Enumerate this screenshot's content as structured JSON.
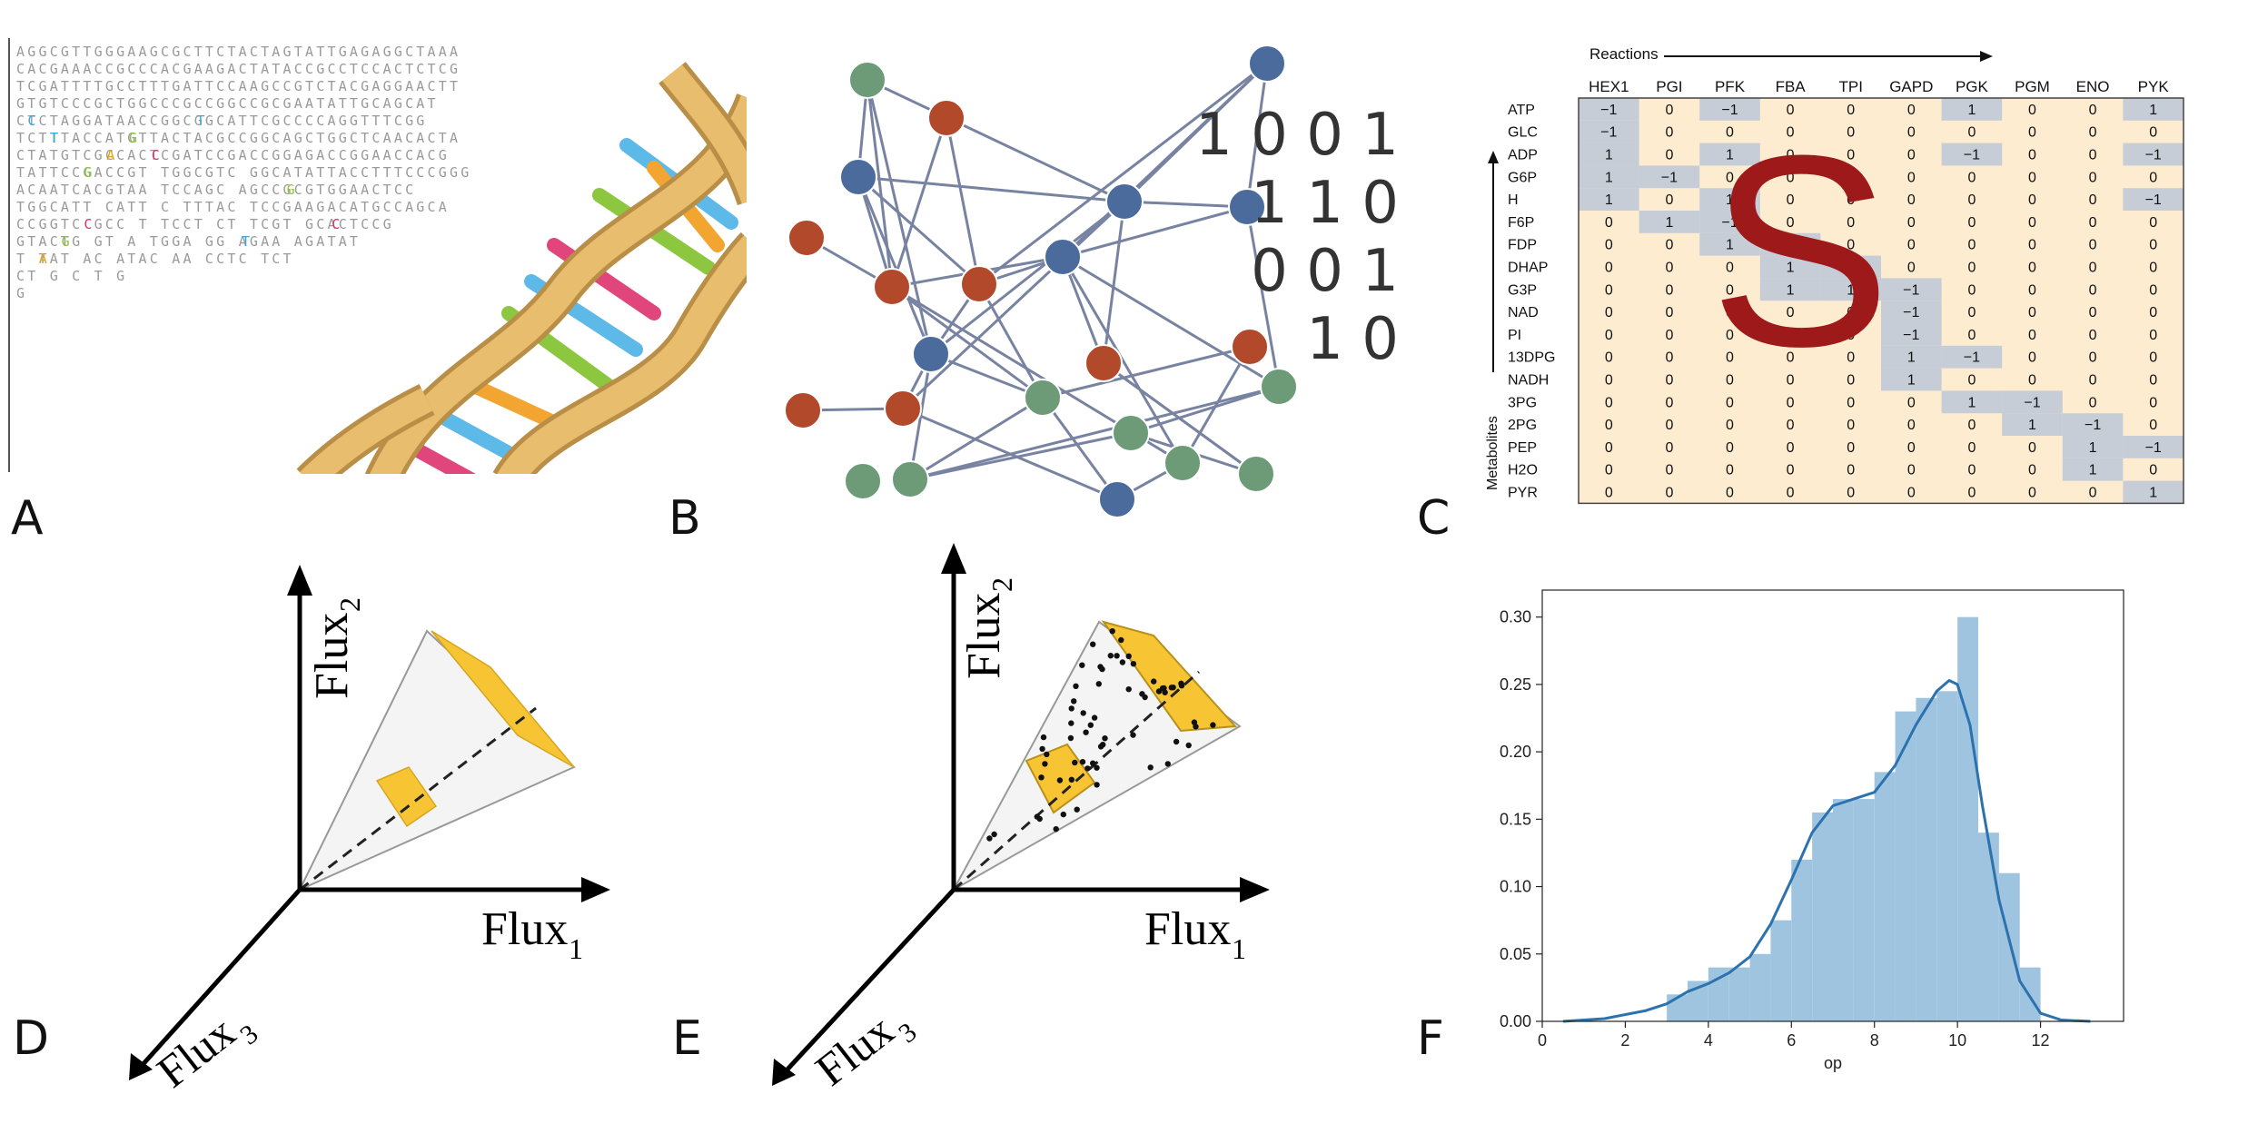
{
  "panels": {
    "A": {
      "letter": "A",
      "sequence_lines": [
        "AGGCGTTGGGAAGCGCTTCTACTAGTATTGAGAGGCTAAA",
        "CACGAAACCGCCCACGAAGACTATACCGCCTCCACTCTCG",
        "TCGATTTTGCCTTTGATTCCAAGCCGTCTACGAGGAACTT",
        "GTGTCCCGCTGGCCCGCCGGCCGCGAATATTGCAGCAT",
        "CTCTAGGATAACCGGCGGCATTCGCCCCAGGTTTCGG",
        "TCTTTACCATGTTACTACGCCGGCAGCTGGCTCAACACTA",
        "CTATGTCGCCACTCGATCCGACCGGAGACCGGAACCACG",
        "TATTCCGACCGT TGGCGTC GGCATATTACCTTTCCCGGG",
        "ACAATCACGTAA TCCAGC AGCCGCGTGGAACTCC",
        "TGGCATT CATT C TTTAC TCCGAAGACATGCCAGCA",
        "CCGGTC GCC T TCCT CT TCGT GCACTCCG",
        "GTACTG GT A TGGA GG AGAA AGATAT",
        "T TAT AC ATAC AA CCTC TCT",
        "CT G C T G",
        "G"
      ]
    },
    "B": {
      "letter": "B",
      "binary_rows": [
        "1 0 0 1",
        "1 1 0",
        "0 0 1",
        "1 0"
      ]
    },
    "C": {
      "letter": "C",
      "reactions_label": "Reactions",
      "metabolites_label": "Metabolites",
      "big_letter": "S",
      "columns": [
        "HEX1",
        "PGI",
        "PFK",
        "FBA",
        "TPI",
        "GAPD",
        "PGK",
        "PGM",
        "ENO",
        "PYK"
      ],
      "rows": [
        {
          "name": "ATP",
          "cells": [
            "−1",
            "0",
            "−1",
            "0",
            "0",
            "0",
            "1",
            "0",
            "0",
            "1"
          ]
        },
        {
          "name": "GLC",
          "cells": [
            "−1",
            "0",
            "0",
            "0",
            "0",
            "0",
            "0",
            "0",
            "0",
            "0"
          ]
        },
        {
          "name": "ADP",
          "cells": [
            "1",
            "0",
            "1",
            "0",
            "0",
            "0",
            "−1",
            "0",
            "0",
            "−1"
          ]
        },
        {
          "name": "G6P",
          "cells": [
            "1",
            "−1",
            "0",
            "0",
            "0",
            "0",
            "0",
            "0",
            "0",
            "0"
          ]
        },
        {
          "name": "H",
          "cells": [
            "1",
            "0",
            "1",
            "0",
            "0",
            "0",
            "0",
            "0",
            "0",
            "−1"
          ]
        },
        {
          "name": "F6P",
          "cells": [
            "0",
            "1",
            "−1",
            "0",
            "0",
            "0",
            "0",
            "0",
            "0",
            "0"
          ]
        },
        {
          "name": "FDP",
          "cells": [
            "0",
            "0",
            "1",
            "−1",
            "0",
            "0",
            "0",
            "0",
            "0",
            "0"
          ]
        },
        {
          "name": "DHAP",
          "cells": [
            "0",
            "0",
            "0",
            "1",
            "−1",
            "0",
            "0",
            "0",
            "0",
            "0"
          ]
        },
        {
          "name": "G3P",
          "cells": [
            "0",
            "0",
            "0",
            "1",
            "1",
            "−1",
            "0",
            "0",
            "0",
            "0"
          ]
        },
        {
          "name": "NAD",
          "cells": [
            "0",
            "0",
            "0",
            "0",
            "0",
            "−1",
            "0",
            "0",
            "0",
            "0"
          ]
        },
        {
          "name": "PI",
          "cells": [
            "0",
            "0",
            "0",
            "0",
            "0",
            "−1",
            "0",
            "0",
            "0",
            "0"
          ]
        },
        {
          "name": "13DPG",
          "cells": [
            "0",
            "0",
            "0",
            "0",
            "0",
            "1",
            "−1",
            "0",
            "0",
            "0"
          ]
        },
        {
          "name": "NADH",
          "cells": [
            "0",
            "0",
            "0",
            "0",
            "0",
            "1",
            "0",
            "0",
            "0",
            "0"
          ]
        },
        {
          "name": "3PG",
          "cells": [
            "0",
            "0",
            "0",
            "0",
            "0",
            "0",
            "1",
            "−1",
            "0",
            "0"
          ]
        },
        {
          "name": "2PG",
          "cells": [
            "0",
            "0",
            "0",
            "0",
            "0",
            "0",
            "0",
            "1",
            "−1",
            "0"
          ]
        },
        {
          "name": "PEP",
          "cells": [
            "0",
            "0",
            "0",
            "0",
            "0",
            "0",
            "0",
            "0",
            "1",
            "−1"
          ]
        },
        {
          "name": "H2O",
          "cells": [
            "0",
            "0",
            "0",
            "0",
            "0",
            "0",
            "0",
            "0",
            "1",
            "0"
          ]
        },
        {
          "name": "PYR",
          "cells": [
            "0",
            "0",
            "0",
            "0",
            "0",
            "0",
            "0",
            "0",
            "0",
            "1"
          ]
        }
      ]
    },
    "D": {
      "letter": "D",
      "axis_y": "Flux",
      "axis_y_sub": "2",
      "axis_x": "Flux",
      "axis_x_sub": "1",
      "axis_z": "Flux",
      "axis_z_sub": "3"
    },
    "E": {
      "letter": "E",
      "axis_y": "Flux",
      "axis_y_sub": "2",
      "axis_x": "Flux",
      "axis_x_sub": "1",
      "axis_z": "Flux",
      "axis_z_sub": "3"
    },
    "F": {
      "letter": "F"
    }
  },
  "colors": {
    "matrix_bg": "#fdecd0",
    "matrix_highlight": "#c6cdd6",
    "big_s": "#9e1a1a",
    "node_blue": "#4a6b9c",
    "node_red": "#b2492b",
    "node_green": "#6d9a77",
    "edge": "#7883a2",
    "flux_yellow": "#f7c534",
    "hist_fill": "#9fc4e0",
    "kde_line": "#2b72ae",
    "dna_gold": "#e9bd6e",
    "dna_gold_dark": "#b98e47"
  },
  "chart_data": {
    "type": "bar",
    "xlabel": "op",
    "ylabel": "",
    "xlim": [
      0,
      14
    ],
    "ylim": [
      0,
      0.32
    ],
    "xticks": [
      0,
      2,
      4,
      6,
      8,
      10,
      12
    ],
    "yticks": [
      "0.00",
      "0.05",
      "0.10",
      "0.15",
      "0.20",
      "0.25",
      "0.30"
    ],
    "bin_width": 0.5,
    "bins_start": [
      3.0,
      3.5,
      4.0,
      4.5,
      5.0,
      5.5,
      6.0,
      6.5,
      7.0,
      7.5,
      8.0,
      8.5,
      9.0,
      9.5,
      10.0,
      10.5,
      11.0,
      11.5
    ],
    "values": [
      0.02,
      0.03,
      0.04,
      0.04,
      0.05,
      0.075,
      0.12,
      0.155,
      0.165,
      0.165,
      0.185,
      0.23,
      0.24,
      0.245,
      0.3,
      0.14,
      0.11,
      0.04
    ],
    "kde": {
      "x": [
        0.5,
        1.5,
        2.5,
        3.0,
        3.5,
        4.0,
        4.5,
        5.0,
        5.5,
        6.0,
        6.5,
        7.0,
        7.5,
        8.0,
        8.5,
        9.0,
        9.5,
        9.8,
        10.0,
        10.3,
        10.6,
        11.0,
        11.5,
        12.0,
        12.5,
        13.2
      ],
      "y": [
        0.0,
        0.002,
        0.008,
        0.013,
        0.022,
        0.028,
        0.036,
        0.048,
        0.072,
        0.105,
        0.14,
        0.16,
        0.165,
        0.17,
        0.19,
        0.22,
        0.245,
        0.253,
        0.25,
        0.22,
        0.16,
        0.09,
        0.03,
        0.006,
        0.001,
        0.0
      ]
    }
  }
}
